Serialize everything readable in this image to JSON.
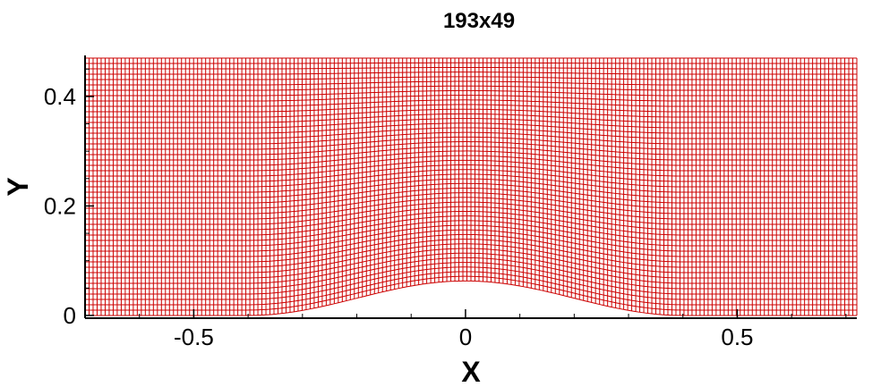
{
  "chart_data": {
    "type": "mesh",
    "title": "193x49",
    "xlabel": "X",
    "ylabel": "Y",
    "xlim": [
      -0.7,
      0.72
    ],
    "ylim": [
      -0.005,
      0.475
    ],
    "x_ticks": [
      {
        "value": -0.5,
        "label": "-0.5"
      },
      {
        "value": 0,
        "label": "0"
      },
      {
        "value": 0.5,
        "label": "0.5"
      }
    ],
    "y_ticks": [
      {
        "value": 0,
        "label": "0"
      },
      {
        "value": 0.2,
        "label": "0.2"
      },
      {
        "value": 0.4,
        "label": "0.4"
      }
    ],
    "grid": {
      "ni": 193,
      "nj": 49,
      "x_range": [
        -0.7,
        0.72
      ],
      "y_top": 0.47,
      "bump": {
        "center": 0.0,
        "height": 0.063,
        "half_width": 0.4
      },
      "line_color": "#cc0000"
    }
  }
}
